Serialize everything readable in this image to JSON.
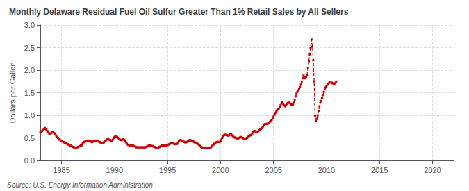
{
  "chart_data": {
    "type": "line",
    "title": "Monthly Delaware Residual Fuel Oil Sulfur Greater Than 1% Retail Sales by All Sellers",
    "y_label": "Dollars per Gallon",
    "annotations": [
      "Source: U.S. Energy Information Administration"
    ],
    "color": "#cc0000",
    "marker": "square",
    "line_style": "dashed",
    "grid": true,
    "xlim": [
      1983,
      2022
    ],
    "xticks": [
      1985,
      1990,
      1995,
      2000,
      2005,
      2010,
      2015,
      2020
    ],
    "ylim": [
      0.0,
      3.0
    ],
    "yticks": [
      {
        "value": 0.0,
        "label": "0.0"
      },
      0.5,
      {
        "value": 1.0,
        "label": "1.0"
      },
      1.5,
      {
        "value": 2.0,
        "label": "2.0"
      },
      2.5,
      {
        "value": 3.0,
        "label": "3.0"
      }
    ],
    "x": [
      1983.0,
      1983.083,
      1983.167,
      1983.25,
      1983.333,
      1983.417,
      1983.5,
      1983.583,
      1983.667,
      1983.75,
      1983.833,
      1983.917,
      1984.0,
      1984.083,
      1984.167,
      1984.25,
      1984.333,
      1984.417,
      1984.5,
      1984.583,
      1984.667,
      1984.75,
      1984.833,
      1984.917,
      1985.0,
      1985.083,
      1985.167,
      1985.25,
      1985.333,
      1985.417,
      1985.5,
      1985.583,
      1985.667,
      1985.75,
      1985.833,
      1985.917,
      1986.0,
      1986.083,
      1986.167,
      1986.25,
      1986.333,
      1986.417,
      1986.5,
      1986.583,
      1986.667,
      1986.75,
      1986.833,
      1986.917,
      1987.0,
      1987.083,
      1987.167,
      1987.25,
      1987.333,
      1987.417,
      1987.5,
      1987.583,
      1987.667,
      1987.75,
      1987.833,
      1987.917,
      1988.0,
      1988.083,
      1988.167,
      1988.25,
      1988.333,
      1988.417,
      1988.5,
      1988.583,
      1988.667,
      1988.75,
      1988.833,
      1988.917,
      1989.0,
      1989.083,
      1989.167,
      1989.25,
      1989.333,
      1989.417,
      1989.5,
      1989.583,
      1989.667,
      1989.75,
      1989.833,
      1989.917,
      1990.0,
      1990.083,
      1990.167,
      1990.25,
      1990.333,
      1990.417,
      1990.5,
      1990.583,
      1990.667,
      1990.75,
      1990.833,
      1990.917,
      1991.0,
      1991.083,
      1991.167,
      1991.25,
      1991.333,
      1991.417,
      1991.5,
      1991.583,
      1991.667,
      1991.75,
      1991.833,
      1991.917,
      1992.0,
      1992.083,
      1992.167,
      1992.25,
      1992.333,
      1992.417,
      1992.5,
      1992.583,
      1992.667,
      1992.75,
      1992.833,
      1992.917,
      1993.0,
      1993.083,
      1993.167,
      1993.25,
      1993.333,
      1993.417,
      1993.5,
      1993.583,
      1993.667,
      1993.75,
      1993.833,
      1993.917,
      1994.0,
      1994.083,
      1994.167,
      1994.25,
      1994.333,
      1994.417,
      1994.5,
      1994.583,
      1994.667,
      1994.75,
      1994.833,
      1994.917,
      1995.0,
      1995.083,
      1995.167,
      1995.25,
      1995.333,
      1995.417,
      1995.5,
      1995.583,
      1995.667,
      1995.75,
      1995.833,
      1995.917,
      1996.0,
      1996.083,
      1996.167,
      1996.25,
      1996.333,
      1996.417,
      1996.5,
      1996.583,
      1996.667,
      1996.75,
      1996.833,
      1996.917,
      1997.0,
      1997.083,
      1997.167,
      1997.25,
      1997.333,
      1997.417,
      1997.5,
      1997.583,
      1997.667,
      1997.75,
      1997.833,
      1997.917,
      1998.0,
      1998.083,
      1998.167,
      1998.25,
      1998.333,
      1998.417,
      1998.5,
      1998.583,
      1998.667,
      1998.75,
      1998.833,
      1998.917,
      1999.0,
      1999.083,
      1999.167,
      1999.25,
      1999.333,
      1999.417,
      1999.5,
      1999.583,
      1999.667,
      1999.75,
      1999.833,
      1999.917,
      2000.0,
      2000.083,
      2000.167,
      2000.25,
      2000.333,
      2000.417,
      2000.5,
      2000.583,
      2000.667,
      2000.75,
      2000.833,
      2000.917,
      2001.0,
      2001.083,
      2001.167,
      2001.25,
      2001.333,
      2001.417,
      2001.5,
      2001.583,
      2001.667,
      2001.75,
      2001.833,
      2001.917,
      2002.0,
      2002.083,
      2002.167,
      2002.25,
      2002.333,
      2002.417,
      2002.5,
      2002.583,
      2002.667,
      2002.75,
      2002.833,
      2002.917,
      2003.0,
      2003.083,
      2003.167,
      2003.25,
      2003.333,
      2003.417,
      2003.5,
      2003.583,
      2003.667,
      2003.75,
      2003.833,
      2003.917,
      2004.0,
      2004.083,
      2004.167,
      2004.25,
      2004.333,
      2004.417,
      2004.5,
      2004.583,
      2004.667,
      2004.75,
      2004.833,
      2004.917,
      2005.0,
      2005.083,
      2005.167,
      2005.25,
      2005.333,
      2005.417,
      2005.5,
      2005.583,
      2005.667,
      2005.75,
      2005.833,
      2005.917,
      2006.0,
      2006.083,
      2006.167,
      2006.25,
      2006.333,
      2006.417,
      2006.5,
      2006.583,
      2006.667,
      2006.75,
      2006.833,
      2006.917,
      2007.0,
      2007.083,
      2007.167,
      2007.25,
      2007.333,
      2007.417,
      2007.5,
      2007.583,
      2007.667,
      2007.75,
      2007.833,
      2007.917,
      2008.0,
      2008.083,
      2008.167,
      2008.25,
      2008.333,
      2008.417,
      2008.5,
      2008.583,
      2008.667,
      2008.75,
      2008.833,
      2008.917,
      2009.0,
      2009.083,
      2009.167,
      2009.25,
      2009.333,
      2009.417,
      2009.5,
      2009.583,
      2009.667,
      2009.75,
      2009.833,
      2009.917,
      2010.0,
      2010.083,
      2010.167,
      2010.25,
      2010.333,
      2010.417,
      2010.5,
      2010.583,
      2010.667,
      2010.75,
      2010.833,
      2010.917
    ],
    "values": [
      0.62,
      0.63,
      0.65,
      0.67,
      0.7,
      0.72,
      0.7,
      0.68,
      0.65,
      0.63,
      0.6,
      0.58,
      0.6,
      0.62,
      0.63,
      0.62,
      0.6,
      0.58,
      0.55,
      0.52,
      0.5,
      0.48,
      0.46,
      0.44,
      0.43,
      0.42,
      0.41,
      0.4,
      0.39,
      0.38,
      0.37,
      0.36,
      0.35,
      0.34,
      0.33,
      0.32,
      0.31,
      0.3,
      0.29,
      0.28,
      0.28,
      0.28,
      0.29,
      0.3,
      0.31,
      0.32,
      0.33,
      0.34,
      0.38,
      0.4,
      0.41,
      0.42,
      0.43,
      0.44,
      0.44,
      0.44,
      0.43,
      0.42,
      0.41,
      0.41,
      0.42,
      0.43,
      0.43,
      0.44,
      0.44,
      0.43,
      0.42,
      0.41,
      0.4,
      0.39,
      0.38,
      0.38,
      0.4,
      0.42,
      0.44,
      0.46,
      0.47,
      0.47,
      0.46,
      0.45,
      0.44,
      0.44,
      0.46,
      0.5,
      0.52,
      0.53,
      0.54,
      0.52,
      0.5,
      0.48,
      0.46,
      0.45,
      0.45,
      0.46,
      0.47,
      0.46,
      0.43,
      0.4,
      0.37,
      0.35,
      0.34,
      0.33,
      0.33,
      0.33,
      0.33,
      0.33,
      0.32,
      0.31,
      0.3,
      0.29,
      0.29,
      0.29,
      0.29,
      0.29,
      0.29,
      0.29,
      0.29,
      0.29,
      0.29,
      0.29,
      0.3,
      0.31,
      0.32,
      0.33,
      0.33,
      0.33,
      0.32,
      0.32,
      0.31,
      0.3,
      0.29,
      0.28,
      0.28,
      0.28,
      0.29,
      0.3,
      0.31,
      0.32,
      0.33,
      0.33,
      0.33,
      0.33,
      0.33,
      0.33,
      0.34,
      0.35,
      0.36,
      0.37,
      0.38,
      0.38,
      0.38,
      0.37,
      0.36,
      0.36,
      0.36,
      0.37,
      0.4,
      0.43,
      0.45,
      0.45,
      0.44,
      0.43,
      0.42,
      0.41,
      0.4,
      0.4,
      0.41,
      0.42,
      0.44,
      0.45,
      0.45,
      0.44,
      0.43,
      0.42,
      0.41,
      0.4,
      0.39,
      0.38,
      0.37,
      0.36,
      0.34,
      0.32,
      0.3,
      0.29,
      0.28,
      0.27,
      0.27,
      0.27,
      0.27,
      0.27,
      0.27,
      0.27,
      0.28,
      0.29,
      0.31,
      0.33,
      0.35,
      0.37,
      0.39,
      0.4,
      0.41,
      0.41,
      0.41,
      0.41,
      0.43,
      0.46,
      0.5,
      0.54,
      0.56,
      0.57,
      0.57,
      0.56,
      0.55,
      0.55,
      0.56,
      0.58,
      0.58,
      0.56,
      0.54,
      0.52,
      0.51,
      0.5,
      0.49,
      0.49,
      0.49,
      0.5,
      0.51,
      0.52,
      0.51,
      0.5,
      0.49,
      0.48,
      0.48,
      0.49,
      0.5,
      0.52,
      0.54,
      0.55,
      0.56,
      0.57,
      0.6,
      0.63,
      0.65,
      0.65,
      0.64,
      0.63,
      0.63,
      0.65,
      0.67,
      0.69,
      0.7,
      0.72,
      0.75,
      0.78,
      0.8,
      0.81,
      0.81,
      0.81,
      0.82,
      0.84,
      0.86,
      0.88,
      0.9,
      0.93,
      0.97,
      1.01,
      1.05,
      1.08,
      1.11,
      1.13,
      1.15,
      1.18,
      1.22,
      1.26,
      1.29,
      1.25,
      1.22,
      1.2,
      1.22,
      1.25,
      1.27,
      1.28,
      1.28,
      1.26,
      1.24,
      1.23,
      1.24,
      1.28,
      1.35,
      1.42,
      1.48,
      1.52,
      1.55,
      1.58,
      1.62,
      1.68,
      1.75,
      1.82,
      1.88,
      1.85,
      1.82,
      1.84,
      1.9,
      2.05,
      2.2,
      2.35,
      2.5,
      2.68,
      2.52,
      2.22,
      1.75,
      0.98,
      0.88,
      0.92,
      1.0,
      1.1,
      1.2,
      1.28,
      1.32,
      1.38,
      1.45,
      1.52,
      1.58,
      1.62,
      1.65,
      1.68,
      1.7,
      1.72,
      1.73,
      1.73,
      1.72,
      1.71,
      1.7,
      1.7,
      1.72,
      1.75
    ]
  }
}
